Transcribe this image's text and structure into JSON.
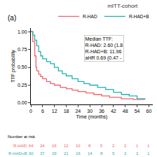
{
  "chart_data": {
    "type": "line",
    "line_style": "step",
    "title": "mITT-cohort",
    "panel_label": "(a)",
    "x_label": "Time (months)",
    "y_label": "TTF probability",
    "xlim": [
      0,
      62
    ],
    "ylim": [
      -0.02,
      1.05
    ],
    "xticks": [
      0,
      6,
      12,
      18,
      24,
      30,
      36,
      42,
      48,
      54,
      60
    ],
    "yticks": [
      {
        "value": 0,
        "label": "0.00"
      },
      {
        "value": 0.25,
        "label": "0.25"
      },
      {
        "value": 0.5,
        "label": "0.50"
      },
      {
        "value": 0.75,
        "label": "0.75"
      },
      {
        "value": 1,
        "label": "1.00"
      }
    ],
    "grid": false,
    "legend": "top",
    "series": [
      {
        "name": "R-HAD",
        "color": "#f0646a",
        "x": [
          0,
          1,
          2,
          2.6,
          3,
          4,
          5,
          6,
          8,
          10,
          12,
          15,
          18,
          21,
          24,
          28,
          32,
          36,
          40,
          46,
          52,
          58
        ],
        "values": [
          1.0,
          0.86,
          0.66,
          0.5,
          0.45,
          0.4,
          0.37,
          0.34,
          0.3,
          0.27,
          0.25,
          0.22,
          0.2,
          0.18,
          0.16,
          0.14,
          0.12,
          0.1,
          0.08,
          0.06,
          0.05,
          0.05
        ]
      },
      {
        "name": "R-HAD+B",
        "color": "#1fb3b3",
        "x": [
          0,
          1,
          2,
          3,
          4,
          5,
          6,
          8,
          10,
          11.96,
          14,
          16,
          18,
          21,
          24,
          27,
          30,
          34,
          38,
          42,
          46,
          50,
          54,
          58
        ],
        "values": [
          1.0,
          0.95,
          0.88,
          0.8,
          0.72,
          0.66,
          0.62,
          0.58,
          0.55,
          0.5,
          0.45,
          0.41,
          0.38,
          0.34,
          0.3,
          0.27,
          0.25,
          0.22,
          0.19,
          0.15,
          0.12,
          0.1,
          0.06,
          0.05
        ]
      }
    ],
    "annotations": [
      {
        "text": [
          "Median TTF:",
          "R-HAD: 2.60 (1.8",
          "R-HAD+B: 11.96",
          "aHR 0.69 (0.47 -"
        ],
        "x": 27,
        "y": 0.95
      }
    ],
    "risk_table": {
      "title": "Number at risk",
      "times": [
        0,
        6,
        12,
        18,
        24,
        30,
        36,
        42,
        48,
        54,
        60
      ],
      "rows": [
        {
          "name": "R-HAD",
          "color": "#f0646a",
          "values": [
            64,
            24,
            16,
            12,
            10,
            8,
            5,
            2,
            2,
            1,
            1
          ]
        },
        {
          "name": "R-HAD+B",
          "color": "#1fb3b3",
          "values": [
            60,
            37,
            29,
            21,
            16,
            14,
            8,
            5,
            2,
            2,
            1
          ]
        }
      ]
    }
  }
}
